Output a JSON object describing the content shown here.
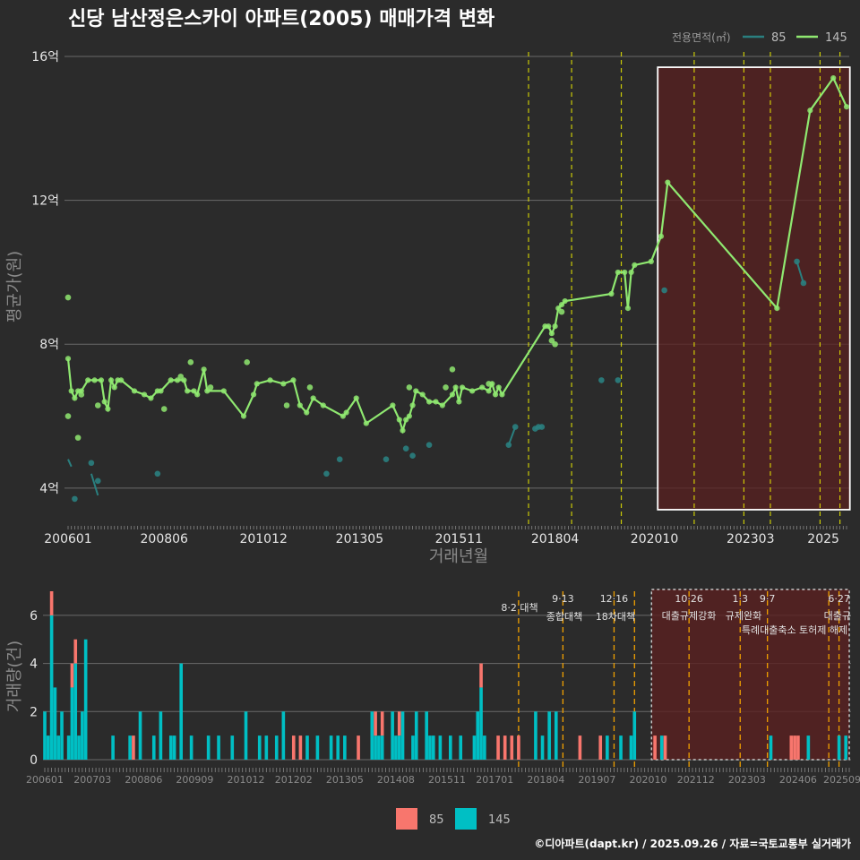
{
  "title": "신당 남산정은스카이 아파트(2005) 매매가격 변화",
  "caption": "©디아파트(dapt.kr) / 2025.09.26 / 자료=국토교통부 실거래가",
  "colors": {
    "background": "#2b2b2b",
    "s85_line": "#2a7f7f",
    "s85_point": "#2a8080",
    "s145": "#8fe870",
    "bar85": "#f8766d",
    "bar145": "#00bfc4",
    "event_line": "#e6e600",
    "event_line_bottom": "#f0a000",
    "shade": "#5a2020"
  },
  "chart_data": [
    {
      "type": "line",
      "title": "신당 남산정은스카이 아파트(2005) 매매가격 변화",
      "xlabel": "거래년월",
      "ylabel": "평균가(원)",
      "ylim": [
        3.0,
        16.2
      ],
      "x_domain": [
        "2006-01",
        "2025-08"
      ],
      "x_tick_labels": [
        "200601",
        "200806",
        "201012",
        "201305",
        "201511",
        "201804",
        "202010",
        "202303",
        "2025"
      ],
      "y_ticks": [
        4,
        8,
        12,
        16
      ],
      "y_tick_labels": [
        "4억",
        "8억",
        "12억",
        "16억"
      ],
      "legend_title": "전용면적(㎡)",
      "legend": [
        "85",
        "145"
      ],
      "events": [
        "2017-08",
        "2018-09",
        "2019-12",
        "2021-10",
        "2023-01",
        "2023-09",
        "2024-12",
        "2025-06"
      ],
      "shaded_region": [
        "2020-11",
        "2025-09"
      ],
      "series": [
        {
          "name": "145",
          "points": [
            [
              "2006-01",
              7.6
            ],
            [
              "2006-02",
              6.7
            ],
            [
              "2006-03",
              6.5
            ],
            [
              "2006-04",
              6.7
            ],
            [
              "2006-05",
              6.7
            ],
            [
              "2006-07",
              7.0
            ],
            [
              "2006-09",
              7.0
            ],
            [
              "2006-11",
              7.0
            ],
            [
              "2006-12",
              6.4
            ],
            [
              "2007-01",
              6.2
            ],
            [
              "2007-02",
              7.0
            ],
            [
              "2007-03",
              6.8
            ],
            [
              "2007-04",
              7.0
            ],
            [
              "2007-05",
              7.0
            ],
            [
              "2007-09",
              6.7
            ],
            [
              "2007-12",
              6.6
            ],
            [
              "2008-02",
              6.5
            ],
            [
              "2008-04",
              6.7
            ],
            [
              "2008-05",
              6.7
            ],
            [
              "2008-08",
              7.0
            ],
            [
              "2008-10",
              7.0
            ],
            [
              "2008-12",
              7.0
            ],
            [
              "2009-01",
              6.7
            ],
            [
              "2009-03",
              6.7
            ],
            [
              "2009-04",
              6.6
            ],
            [
              "2009-06",
              7.3
            ],
            [
              "2009-07",
              6.7
            ],
            [
              "2009-12",
              6.7
            ],
            [
              "2010-06",
              6.0
            ],
            [
              "2010-09",
              6.6
            ],
            [
              "2010-10",
              6.9
            ],
            [
              "2011-02",
              7.0
            ],
            [
              "2011-06",
              6.9
            ],
            [
              "2011-09",
              7.0
            ],
            [
              "2011-11",
              6.3
            ],
            [
              "2012-01",
              6.1
            ],
            [
              "2012-03",
              6.5
            ],
            [
              "2012-06",
              6.3
            ],
            [
              "2012-12",
              6.0
            ],
            [
              "2013-01",
              6.1
            ],
            [
              "2013-04",
              6.5
            ],
            [
              "2013-07",
              5.8
            ],
            [
              "2014-03",
              6.3
            ],
            [
              "2014-05",
              5.9
            ],
            [
              "2014-06",
              5.6
            ],
            [
              "2014-07",
              5.9
            ],
            [
              "2014-08",
              6.0
            ],
            [
              "2014-09",
              6.3
            ],
            [
              "2014-10",
              6.7
            ],
            [
              "2014-12",
              6.6
            ],
            [
              "2015-02",
              6.4
            ],
            [
              "2015-04",
              6.4
            ],
            [
              "2015-06",
              6.3
            ],
            [
              "2015-09",
              6.6
            ],
            [
              "2015-10",
              6.8
            ],
            [
              "2015-11",
              6.4
            ],
            [
              "2015-12",
              6.8
            ],
            [
              "2016-03",
              6.7
            ],
            [
              "2016-06",
              6.8
            ],
            [
              "2016-08",
              6.7
            ],
            [
              "2016-09",
              6.9
            ],
            [
              "2016-10",
              6.6
            ],
            [
              "2016-11",
              6.8
            ],
            [
              "2016-12",
              6.6
            ],
            [
              "2018-01",
              8.5
            ],
            [
              "2018-02",
              8.5
            ],
            [
              "2018-03",
              8.3
            ],
            [
              "2018-04",
              8.5
            ],
            [
              "2018-05",
              9.0
            ],
            [
              "2018-06",
              9.1
            ],
            [
              "2018-07",
              9.2
            ],
            [
              "2019-09",
              9.4
            ],
            [
              "2019-11",
              10.0
            ],
            [
              "2020-01",
              10.0
            ],
            [
              "2020-02",
              9.0
            ],
            [
              "2020-03",
              10.0
            ],
            [
              "2020-04",
              10.2
            ],
            [
              "2020-09",
              10.3
            ],
            [
              "2020-12",
              11.0
            ],
            [
              "2021-02",
              12.5
            ],
            [
              "2023-11",
              9.0
            ],
            [
              "2024-09",
              14.5
            ],
            [
              "2025-04",
              15.4
            ],
            [
              "2025-08",
              14.6
            ]
          ],
          "extra_points": [
            [
              "2006-01",
              9.3
            ],
            [
              "2006-01",
              6.0
            ],
            [
              "2006-04",
              5.4
            ],
            [
              "2006-05",
              6.6
            ],
            [
              "2006-10",
              6.3
            ],
            [
              "2008-06",
              6.2
            ],
            [
              "2008-11",
              7.1
            ],
            [
              "2009-02",
              7.5
            ],
            [
              "2009-08",
              6.8
            ],
            [
              "2010-07",
              7.5
            ],
            [
              "2011-07",
              6.3
            ],
            [
              "2012-02",
              6.8
            ],
            [
              "2014-08",
              6.8
            ],
            [
              "2015-07",
              6.8
            ],
            [
              "2015-09",
              7.3
            ],
            [
              "2016-08",
              6.9
            ],
            [
              "2018-03",
              8.1
            ],
            [
              "2018-04",
              8.0
            ],
            [
              "2018-06",
              8.9
            ]
          ]
        },
        {
          "name": "85",
          "segments": [
            [
              [
                "2006-01",
                4.8
              ],
              [
                "2006-02",
                4.6
              ]
            ],
            [
              [
                "2006-08",
                4.4
              ],
              [
                "2006-10",
                3.8
              ]
            ],
            [
              [
                "2017-02",
                5.2
              ],
              [
                "2017-04",
                5.7
              ]
            ],
            [
              [
                "2017-10",
                5.65
              ],
              [
                "2017-11",
                5.7
              ],
              [
                "2017-12",
                5.7
              ]
            ],
            [
              [
                "2024-05",
                10.3
              ],
              [
                "2024-07",
                9.7
              ]
            ]
          ],
          "points": [
            [
              "2006-03",
              3.7
            ],
            [
              "2006-08",
              4.7
            ],
            [
              "2006-10",
              4.2
            ],
            [
              "2008-04",
              4.4
            ],
            [
              "2012-07",
              4.4
            ],
            [
              "2012-11",
              4.8
            ],
            [
              "2014-01",
              4.8
            ],
            [
              "2014-07",
              5.1
            ],
            [
              "2014-09",
              4.9
            ],
            [
              "2015-02",
              5.2
            ],
            [
              "2017-02",
              5.2
            ],
            [
              "2017-04",
              5.7
            ],
            [
              "2017-10",
              5.65
            ],
            [
              "2017-11",
              5.7
            ],
            [
              "2017-12",
              5.7
            ],
            [
              "2019-06",
              7.0
            ],
            [
              "2019-11",
              7.0
            ],
            [
              "2021-01",
              9.5
            ],
            [
              "2024-05",
              10.3
            ],
            [
              "2024-07",
              9.7
            ]
          ]
        }
      ]
    },
    {
      "type": "bar",
      "xlabel": "",
      "ylabel": "거래량(건)",
      "ylim": [
        0,
        7
      ],
      "y_ticks": [
        0,
        2,
        4,
        6
      ],
      "x_tick_labels": [
        "200601",
        "200703",
        "200806",
        "200909",
        "201012",
        "201202",
        "201305",
        "201408",
        "201511",
        "201701",
        "201804",
        "201907",
        "202010",
        "202112",
        "202303",
        "202406",
        "202509"
      ],
      "legend": [
        "85",
        "145"
      ],
      "events": [
        {
          "month": "2017-08",
          "date": "",
          "label": "8·2 대책"
        },
        {
          "month": "2018-09",
          "date": "9·13",
          "label": "종합대책"
        },
        {
          "month": "2019-12",
          "date": "12·16",
          "label": "18차대책"
        },
        {
          "month": "2020-06",
          "date": "",
          "label": ""
        },
        {
          "month": "2021-10",
          "date": "10·26",
          "label": "대출규제강화"
        },
        {
          "month": "2023-01",
          "date": "1·3",
          "label": "규제완화"
        },
        {
          "month": "2023-09",
          "date": "9·7",
          "label": "특례대출축소 토허제 해제"
        },
        {
          "month": "2025-03",
          "date": "",
          "label": ""
        },
        {
          "month": "2025-06",
          "date": "6·27",
          "label": "대출규"
        }
      ],
      "shaded_region": [
        "2020-11",
        "2025-09"
      ],
      "bars": [
        [
          "2006-01",
          0,
          2
        ],
        [
          "2006-02",
          0,
          1
        ],
        [
          "2006-03",
          1,
          6
        ],
        [
          "2006-04",
          0,
          3
        ],
        [
          "2006-05",
          0,
          1
        ],
        [
          "2006-06",
          0,
          2
        ],
        [
          "2006-08",
          0,
          1
        ],
        [
          "2006-09",
          1,
          3
        ],
        [
          "2006-10",
          1,
          4
        ],
        [
          "2006-11",
          0,
          1
        ],
        [
          "2006-12",
          0,
          2
        ],
        [
          "2007-01",
          0,
          5
        ],
        [
          "2007-09",
          0,
          1
        ],
        [
          "2008-02",
          0,
          1
        ],
        [
          "2008-03",
          1,
          0
        ],
        [
          "2008-05",
          0,
          2
        ],
        [
          "2008-09",
          0,
          1
        ],
        [
          "2008-11",
          0,
          2
        ],
        [
          "2009-02",
          0,
          1
        ],
        [
          "2009-03",
          0,
          1
        ],
        [
          "2009-05",
          0,
          4
        ],
        [
          "2009-08",
          0,
          1
        ],
        [
          "2010-01",
          0,
          1
        ],
        [
          "2010-04",
          0,
          1
        ],
        [
          "2010-08",
          0,
          1
        ],
        [
          "2010-12",
          0,
          2
        ],
        [
          "2011-04",
          0,
          1
        ],
        [
          "2011-06",
          0,
          1
        ],
        [
          "2011-09",
          0,
          1
        ],
        [
          "2011-11",
          0,
          2
        ],
        [
          "2012-02",
          1,
          0
        ],
        [
          "2012-04",
          1,
          0
        ],
        [
          "2012-06",
          0,
          1
        ],
        [
          "2012-09",
          0,
          1
        ],
        [
          "2013-01",
          0,
          1
        ],
        [
          "2013-03",
          0,
          1
        ],
        [
          "2013-05",
          0,
          1
        ],
        [
          "2013-09",
          1,
          0
        ],
        [
          "2014-01",
          0,
          2
        ],
        [
          "2014-02",
          1,
          1
        ],
        [
          "2014-03",
          0,
          1
        ],
        [
          "2014-04",
          1,
          1
        ],
        [
          "2014-07",
          0,
          2
        ],
        [
          "2014-08",
          0,
          1
        ],
        [
          "2014-09",
          1,
          1
        ],
        [
          "2014-10",
          0,
          2
        ],
        [
          "2015-01",
          0,
          1
        ],
        [
          "2015-02",
          0,
          2
        ],
        [
          "2015-05",
          0,
          2
        ],
        [
          "2015-06",
          0,
          1
        ],
        [
          "2015-07",
          0,
          1
        ],
        [
          "2015-09",
          0,
          1
        ],
        [
          "2015-12",
          0,
          1
        ],
        [
          "2016-03",
          0,
          1
        ],
        [
          "2016-07",
          0,
          1
        ],
        [
          "2016-08",
          0,
          2
        ],
        [
          "2016-09",
          1,
          3
        ],
        [
          "2016-10",
          0,
          1
        ],
        [
          "2017-02",
          1,
          0
        ],
        [
          "2017-04",
          1,
          0
        ],
        [
          "2017-06",
          1,
          0
        ],
        [
          "2017-08",
          1,
          0
        ],
        [
          "2018-01",
          0,
          2
        ],
        [
          "2018-03",
          0,
          1
        ],
        [
          "2018-05",
          0,
          2
        ],
        [
          "2018-07",
          0,
          2
        ],
        [
          "2019-02",
          1,
          0
        ],
        [
          "2019-08",
          1,
          0
        ],
        [
          "2019-10",
          0,
          1
        ],
        [
          "2020-02",
          0,
          1
        ],
        [
          "2020-05",
          0,
          1
        ],
        [
          "2020-06",
          0,
          2
        ],
        [
          "2020-12",
          1,
          0
        ],
        [
          "2021-02",
          0,
          1
        ],
        [
          "2021-03",
          1,
          0
        ],
        [
          "2023-10",
          0,
          1
        ],
        [
          "2024-04",
          1,
          0
        ],
        [
          "2024-05",
          1,
          0
        ],
        [
          "2024-06",
          1,
          0
        ],
        [
          "2024-09",
          0,
          1
        ],
        [
          "2025-06",
          0,
          1
        ],
        [
          "2025-08",
          0,
          1
        ]
      ]
    }
  ]
}
